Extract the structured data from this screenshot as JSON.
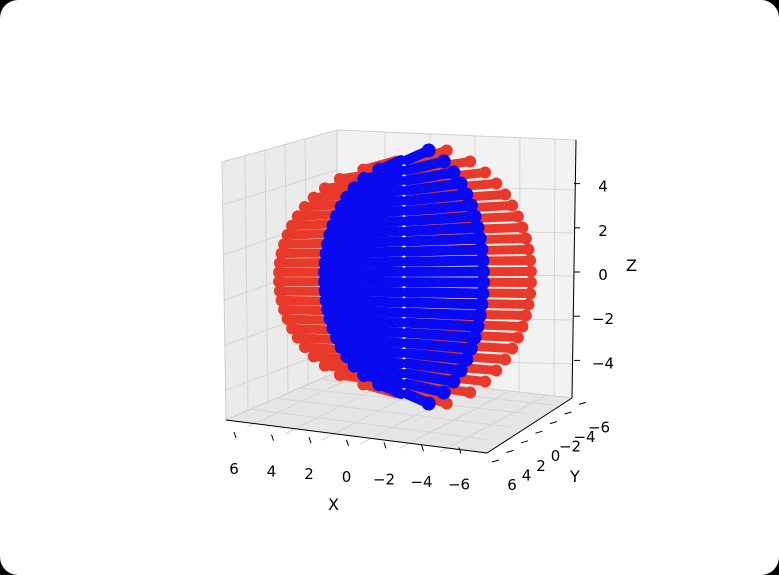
{
  "chart_data": {
    "type": "scatter",
    "projection": "3d",
    "title": "",
    "xlabel": "X",
    "ylabel": "Y",
    "zlabel": "Z",
    "xlim": [
      -6.5,
      6.5
    ],
    "ylim": [
      -6.5,
      6.5
    ],
    "zlim": [
      -5.5,
      5.5
    ],
    "x_ticks": [
      6,
      4,
      2,
      0,
      -2,
      -4,
      -6
    ],
    "y_ticks": [
      6,
      4,
      2,
      0,
      -2,
      -4,
      -6
    ],
    "z_ticks": [
      -4,
      -2,
      0,
      2,
      4
    ],
    "grid": true,
    "legend": "none",
    "series": [
      {
        "color": "#e8392a",
        "shape": "outer banded shell split into two halves",
        "radius": 5.5,
        "bands": 24
      },
      {
        "color": "#0a0af0",
        "shape": "inner banded shell split into two halves",
        "radius": 5.0,
        "bands": 24
      }
    ],
    "colors": {
      "outer": "#e8392a",
      "inner": "#0a0af0",
      "pane": "#f2f2f2",
      "grid": "#d9d9d9"
    }
  }
}
